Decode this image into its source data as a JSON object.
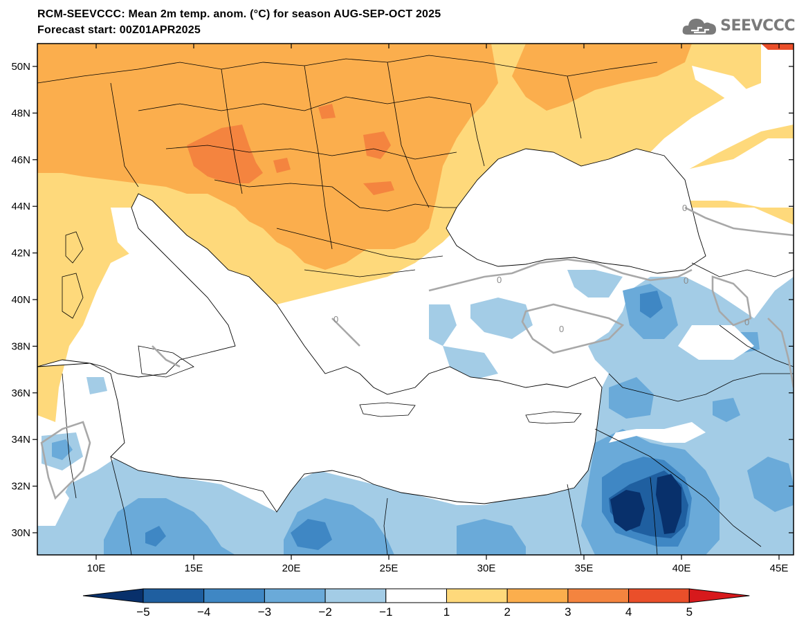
{
  "header": {
    "title_line1": "RCM-SEEVCCC: Mean 2m temp. anom. (°C) for season AUG-SEP-OCT 2025",
    "title_line2": "Forecast start: 00Z01APR2025",
    "logo_text": "SEEVCCC",
    "logo_icon": "cloud-logo-icon"
  },
  "map": {
    "lat_labels": [
      "50N",
      "48N",
      "46N",
      "44N",
      "42N",
      "40N",
      "38N",
      "36N",
      "34N",
      "32N",
      "30N"
    ],
    "lon_labels": [
      "10E",
      "15E",
      "20E",
      "25E",
      "30E",
      "35E",
      "40E",
      "45E"
    ],
    "contour_label": "0"
  },
  "colorbar": {
    "labels": [
      "−5",
      "−4",
      "−3",
      "−2",
      "−1",
      "1",
      "2",
      "3",
      "4",
      "5"
    ],
    "colors": {
      "below": "#08306b",
      "n5_n4": "#1f5fa0",
      "n4_n3": "#3f87c4",
      "n3_n2": "#6aaad9",
      "n2_n1": "#a3cce6",
      "n1_p1": "#ffffff",
      "p1_p2": "#fed97b",
      "p2_p3": "#fbae4d",
      "p3_p4": "#f4843f",
      "p4_p5": "#ea4f2a",
      "above": "#d7191c"
    }
  }
}
